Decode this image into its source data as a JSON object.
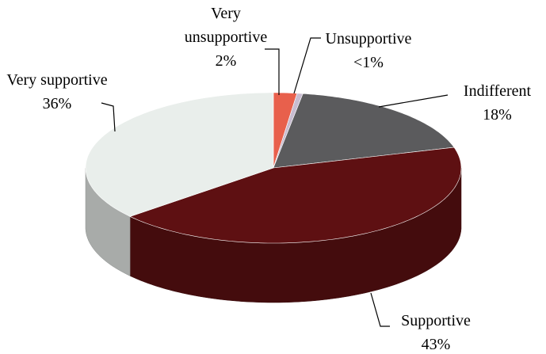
{
  "chart_data": {
    "type": "pie",
    "categories": [
      "Very unsupportive",
      "Unsupportive",
      "Indifferent",
      "Supportive",
      "Very supportive"
    ],
    "values": [
      2,
      0.5,
      18,
      43,
      36
    ],
    "value_labels": [
      "2%",
      "<1%",
      "18%",
      "43%",
      "36%"
    ],
    "colors": [
      "#e8604c",
      "#c8bcd0",
      "#5b5b5d",
      "#5e1012",
      "#e9eeeb"
    ]
  }
}
